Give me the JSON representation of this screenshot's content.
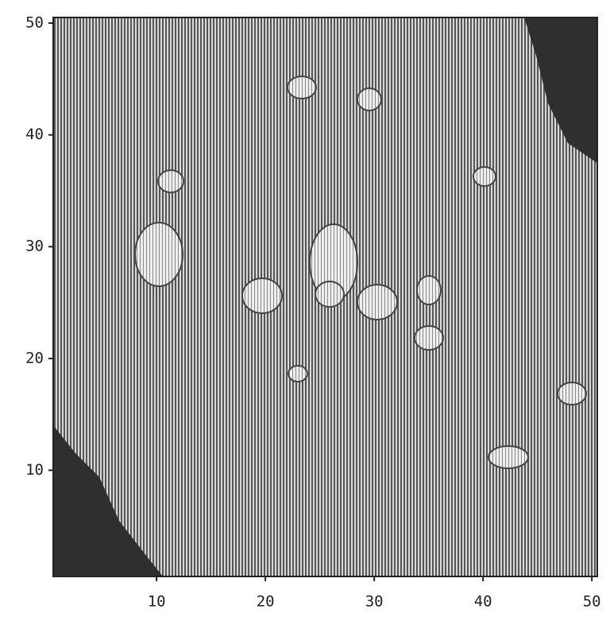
{
  "chart_data": {
    "type": "density",
    "xlim": [
      0.5,
      50.5
    ],
    "ylim": [
      0.5,
      50.5
    ],
    "xticks": [
      10,
      20,
      30,
      40,
      50
    ],
    "yticks": [
      10,
      20,
      30,
      40,
      50
    ]
  }
}
